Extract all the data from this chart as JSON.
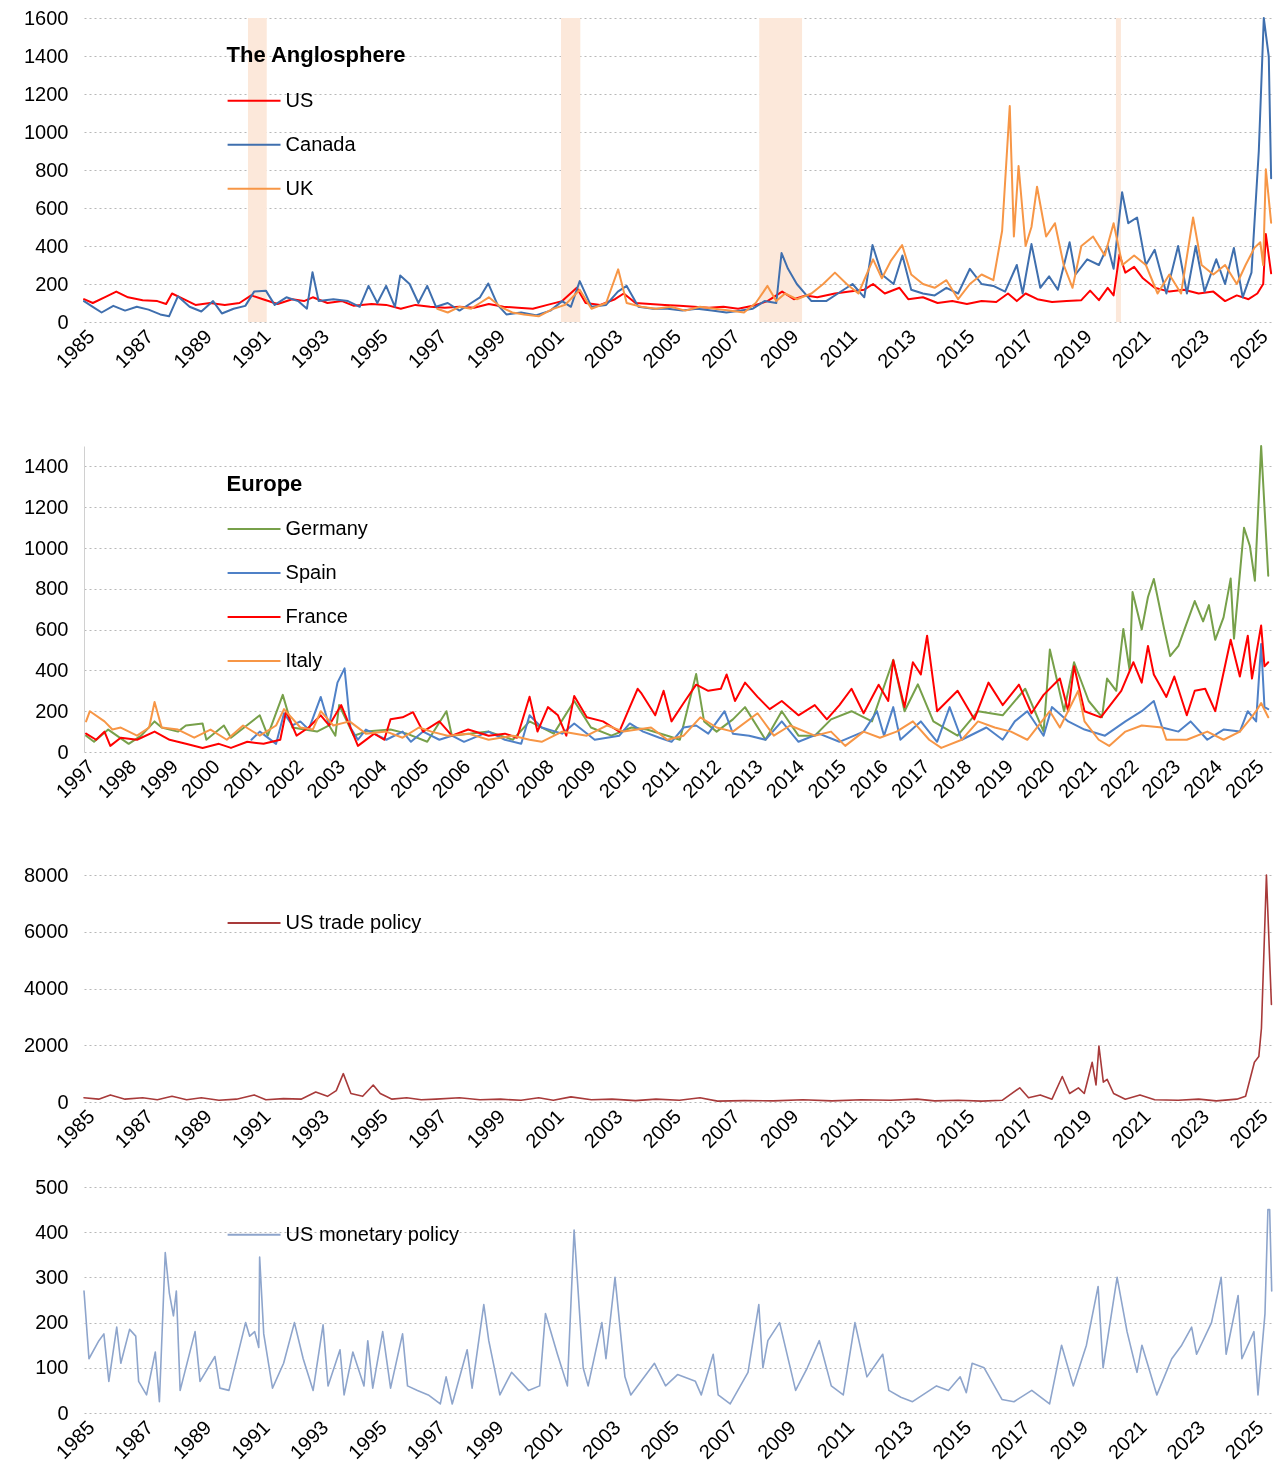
{
  "chart_data": [
    {
      "type": "line",
      "legend": "top left",
      "legend_title": "The Anglosphere",
      "grid": "y",
      "xlim": [
        1985,
        2025.5
      ],
      "xticks": [
        1985,
        1987,
        1989,
        1991,
        1993,
        1995,
        1997,
        1999,
        2001,
        2003,
        2005,
        2007,
        2009,
        2011,
        2013,
        2015,
        2017,
        2019,
        2021,
        2023,
        2025
      ],
      "ylim": [
        0,
        1600
      ],
      "yticks": [
        0,
        200,
        400,
        600,
        800,
        1000,
        1200,
        1400,
        1600
      ],
      "bands": [
        {
          "axis": "x",
          "from": 1990.59,
          "to": 1991.23,
          "color": "#fce8da"
        },
        {
          "axis": "x",
          "from": 2001.26,
          "to": 2001.92,
          "color": "#fce8da"
        },
        {
          "axis": "x",
          "from": 2008.02,
          "to": 2009.48,
          "color": "#fce8da"
        },
        {
          "axis": "x",
          "from": 2020.18,
          "to": 2020.35,
          "color": "#fce8da"
        }
      ],
      "series": [
        {
          "name": "US",
          "color": "#ff0000",
          "x": [
            1985.0,
            1985.3,
            1985.7,
            1986.1,
            1986.5,
            1987.0,
            1987.5,
            1987.8,
            1988.0,
            1988.4,
            1988.8,
            1989.3,
            1989.8,
            1990.3,
            1990.7,
            1991.1,
            1991.6,
            1992.1,
            1992.5,
            1992.8,
            1993.3,
            1993.8,
            1994.2,
            1994.8,
            1995.3,
            1995.8,
            1996.3,
            1996.8,
            1997.3,
            1997.8,
            1998.3,
            1998.8,
            1999.3,
            1999.8,
            2000.3,
            2000.8,
            2001.3,
            2001.8,
            2002.1,
            2002.6,
            2003.1,
            2003.4,
            2003.8,
            2004.3,
            2004.8,
            2005.3,
            2005.8,
            2006.3,
            2006.8,
            2007.3,
            2007.8,
            2008.3,
            2008.8,
            2009.2,
            2009.6,
            2010.0,
            2010.6,
            2011.1,
            2011.6,
            2011.9,
            2012.3,
            2012.8,
            2013.1,
            2013.6,
            2014.1,
            2014.6,
            2015.1,
            2015.6,
            2016.1,
            2016.5,
            2016.8,
            2017.1,
            2017.5,
            2018.0,
            2018.5,
            2019.0,
            2019.3,
            2019.6,
            2019.9,
            2020.1,
            2020.3,
            2020.5,
            2020.8,
            2021.1,
            2021.5,
            2022.0,
            2022.5,
            2023.0,
            2023.5,
            2023.9,
            2024.3,
            2024.7,
            2025.0,
            2025.2,
            2025.29,
            2025.47
          ],
          "values": [
            120,
            100,
            130,
            160,
            130,
            115,
            110,
            95,
            150,
            120,
            90,
            100,
            90,
            100,
            140,
            120,
            95,
            120,
            110,
            130,
            100,
            110,
            85,
            95,
            90,
            70,
            90,
            80,
            75,
            80,
            75,
            95,
            80,
            75,
            70,
            90,
            110,
            180,
            100,
            90,
            120,
            150,
            100,
            95,
            90,
            85,
            80,
            75,
            80,
            70,
            85,
            110,
            160,
            120,
            140,
            130,
            150,
            160,
            170,
            200,
            150,
            180,
            120,
            130,
            100,
            110,
            95,
            110,
            105,
            150,
            110,
            150,
            120,
            105,
            110,
            115,
            165,
            115,
            180,
            140,
            355,
            260,
            290,
            230,
            180,
            160,
            170,
            150,
            160,
            110,
            140,
            120,
            150,
            200,
            463,
            256
          ]
        },
        {
          "name": "Canada",
          "color": "#3f6fae",
          "x": [
            1985.0,
            1985.3,
            1985.6,
            1986.0,
            1986.4,
            1986.8,
            1987.2,
            1987.6,
            1987.9,
            1988.2,
            1988.6,
            1989.0,
            1989.4,
            1989.7,
            1990.1,
            1990.5,
            1990.8,
            1991.2,
            1991.5,
            1991.9,
            1992.3,
            1992.6,
            1992.79,
            1993.0,
            1993.5,
            1994.0,
            1994.4,
            1994.7,
            1995.0,
            1995.3,
            1995.6,
            1995.78,
            1996.1,
            1996.4,
            1996.7,
            1997.0,
            1997.4,
            1997.8,
            1998.2,
            1998.5,
            1998.78,
            1999.1,
            1999.4,
            1999.9,
            2000.4,
            2000.9,
            2001.3,
            2001.6,
            2001.9,
            2002.3,
            2002.8,
            2003.2,
            2003.5,
            2003.9,
            2004.4,
            2004.9,
            2005.4,
            2005.9,
            2006.4,
            2006.9,
            2007.4,
            2007.8,
            2008.2,
            2008.6,
            2008.78,
            2009.0,
            2009.3,
            2009.8,
            2010.3,
            2010.7,
            2011.2,
            2011.6,
            2011.88,
            2012.2,
            2012.6,
            2012.9,
            2013.2,
            2013.6,
            2014.0,
            2014.4,
            2014.8,
            2015.2,
            2015.6,
            2016.0,
            2016.4,
            2016.8,
            2017.0,
            2017.3,
            2017.6,
            2017.9,
            2018.2,
            2018.6,
            2018.8,
            2019.2,
            2019.6,
            2019.9,
            2020.1,
            2020.39,
            2020.6,
            2020.9,
            2021.2,
            2021.5,
            2021.9,
            2022.3,
            2022.6,
            2022.9,
            2023.2,
            2023.6,
            2023.9,
            2024.2,
            2024.5,
            2024.8,
            2025.05,
            2025.22,
            2025.39,
            2025.47
          ],
          "values": [
            110,
            80,
            50,
            85,
            60,
            80,
            65,
            40,
            30,
            135,
            80,
            55,
            110,
            45,
            70,
            85,
            160,
            165,
            90,
            130,
            110,
            70,
            262,
            110,
            120,
            110,
            80,
            190,
            100,
            190,
            80,
            245,
            200,
            100,
            190,
            80,
            100,
            60,
            100,
            130,
            203,
            90,
            40,
            50,
            35,
            60,
            110,
            80,
            215,
            80,
            90,
            160,
            190,
            80,
            70,
            70,
            60,
            70,
            60,
            50,
            60,
            70,
            110,
            100,
            363,
            280,
            200,
            110,
            110,
            150,
            200,
            130,
            405,
            250,
            200,
            350,
            170,
            150,
            140,
            180,
            150,
            280,
            200,
            190,
            160,
            300,
            150,
            410,
            180,
            240,
            170,
            420,
            250,
            330,
            300,
            400,
            280,
            683,
            520,
            550,
            300,
            380,
            150,
            400,
            150,
            400,
            160,
            330,
            200,
            390,
            130,
            260,
            900,
            1600,
            1397,
            757
          ]
        },
        {
          "name": "UK",
          "color": "#f79646",
          "x": [
            1997.04,
            1997.4,
            1997.8,
            1998.2,
            1998.5,
            1998.8,
            1999.2,
            1999.6,
            2000.0,
            2000.5,
            2001.0,
            2001.4,
            2001.9,
            2002.3,
            2002.8,
            2003.21,
            2003.5,
            2004.0,
            2004.5,
            2005.0,
            2005.5,
            2006.0,
            2006.5,
            2007.0,
            2007.5,
            2007.9,
            2008.3,
            2008.6,
            2008.9,
            2009.3,
            2009.8,
            2010.2,
            2010.6,
            2011.0,
            2011.4,
            2011.9,
            2012.2,
            2012.5,
            2012.89,
            2013.2,
            2013.6,
            2014.0,
            2014.4,
            2014.8,
            2015.2,
            2015.6,
            2016.0,
            2016.3,
            2016.56,
            2016.7,
            2016.86,
            2017.1,
            2017.3,
            2017.49,
            2017.8,
            2018.1,
            2018.4,
            2018.7,
            2019.0,
            2019.4,
            2019.8,
            2020.1,
            2020.4,
            2020.8,
            2021.2,
            2021.6,
            2022.0,
            2022.4,
            2022.81,
            2023.1,
            2023.5,
            2023.9,
            2024.3,
            2024.6,
            2024.9,
            2025.1,
            2025.2,
            2025.29,
            2025.47
          ],
          "values": [
            70,
            50,
            80,
            70,
            100,
            130,
            80,
            50,
            40,
            30,
            70,
            90,
            170,
            70,
            100,
            277,
            100,
            80,
            70,
            80,
            60,
            80,
            70,
            60,
            50,
            100,
            190,
            110,
            150,
            120,
            150,
            200,
            260,
            200,
            150,
            330,
            230,
            320,
            405,
            250,
            200,
            180,
            220,
            120,
            200,
            250,
            220,
            480,
            1137,
            450,
            821,
            400,
            500,
            712,
            450,
            520,
            300,
            180,
            400,
            450,
            350,
            520,
            300,
            350,
            300,
            150,
            250,
            150,
            550,
            300,
            250,
            300,
            200,
            300,
            390,
            420,
            300,
            804,
            523
          ]
        }
      ]
    },
    {
      "type": "line",
      "legend": "top left",
      "legend_title": "Europe",
      "grid": "y",
      "xlim": [
        1997,
        2025.45
      ],
      "xticks": [
        1997,
        1998,
        1999,
        2000,
        2001,
        2002,
        2003,
        2004,
        2005,
        2006,
        2007,
        2008,
        2009,
        2010,
        2011,
        2012,
        2013,
        2014,
        2015,
        2016,
        2017,
        2018,
        2019,
        2020,
        2021,
        2022,
        2023,
        2024,
        2025
      ],
      "ylim": [
        0,
        1500
      ],
      "yticks": [
        0,
        200,
        400,
        600,
        800,
        1000,
        1200,
        1400
      ],
      "series": [
        {
          "name": "Germany",
          "color": "#77a04a",
          "x": [
            1997.05,
            1997.24,
            1997.58,
            1998.07,
            1998.37,
            1998.69,
            1998.86,
            1999.25,
            1999.44,
            1999.84,
            1999.93,
            2000.35,
            2000.52,
            2001.21,
            2001.4,
            2001.76,
            2001.99,
            2002.58,
            2002.87,
            2003.02,
            2003.11,
            2003.46,
            2003.75,
            2004.34,
            2004.73,
            2005.22,
            2005.68,
            2005.81,
            2006.69,
            2007.27,
            2007.67,
            2008.25,
            2008.74,
            2009.14,
            2009.63,
            2010.11,
            2010.48,
            2010.97,
            2011.27,
            2011.66,
            2011.85,
            2012.15,
            2012.54,
            2012.83,
            2013.32,
            2013.71,
            2014.11,
            2014.5,
            2014.89,
            2015.38,
            2015.87,
            2016.38,
            2016.65,
            2016.97,
            2017.34,
            2017.92,
            2018.41,
            2019.0,
            2019.54,
            2019.98,
            2020.13,
            2020.27,
            2020.47,
            2020.71,
            2021.06,
            2021.38,
            2021.5,
            2021.72,
            2021.89,
            2022.04,
            2022.11,
            2022.33,
            2022.48,
            2022.62,
            2022.87,
            2023.01,
            2023.21,
            2023.6,
            2023.8,
            2023.94,
            2024.09,
            2024.29,
            2024.46,
            2024.54,
            2024.78,
            2024.92,
            2025.04,
            2025.19,
            2025.36
          ],
          "values": [
            80,
            50,
            110,
            40,
            80,
            150,
            120,
            100,
            130,
            140,
            60,
            130,
            70,
            180,
            80,
            280,
            120,
            100,
            130,
            80,
            230,
            80,
            100,
            110,
            90,
            50,
            200,
            80,
            100,
            60,
            150,
            90,
            250,
            120,
            80,
            120,
            110,
            80,
            60,
            382,
            150,
            100,
            160,
            220,
            60,
            200,
            80,
            80,
            160,
            200,
            150,
            452,
            200,
            332,
            150,
            80,
            200,
            180,
            310,
            100,
            502,
            380,
            200,
            440,
            250,
            171,
            360,
            300,
            603,
            400,
            784,
            600,
            760,
            848,
            600,
            470,
            520,
            740,
            640,
            720,
            550,
            660,
            850,
            556,
            1099,
            1010,
            840,
            1500,
            864
          ]
        },
        {
          "name": "Spain",
          "color": "#4f81c7",
          "x": [
            2001.01,
            2001.21,
            2001.6,
            2001.79,
            2001.99,
            2002.18,
            2002.38,
            2002.67,
            2002.87,
            2003.07,
            2003.24,
            2003.38,
            2003.56,
            2003.75,
            2004.24,
            2004.63,
            2004.83,
            2005.12,
            2005.51,
            2005.81,
            2006.1,
            2006.69,
            2007.08,
            2007.47,
            2007.67,
            2007.96,
            2008.45,
            2008.74,
            2009.23,
            2009.82,
            2010.07,
            2010.39,
            2010.78,
            2011.07,
            2011.36,
            2011.66,
            2011.95,
            2012.34,
            2012.54,
            2012.93,
            2013.32,
            2013.71,
            2014.11,
            2014.6,
            2015.09,
            2015.67,
            2015.99,
            2016.16,
            2016.38,
            2016.55,
            2017.04,
            2017.43,
            2017.73,
            2018.02,
            2018.61,
            2019.0,
            2019.29,
            2019.59,
            2019.98,
            2020.18,
            2020.57,
            2020.96,
            2021.45,
            2021.94,
            2022.33,
            2022.62,
            2022.82,
            2023.21,
            2023.5,
            2023.9,
            2024.29,
            2024.68,
            2024.87,
            2025.07,
            2025.19,
            2025.27,
            2025.36
          ],
          "values": [
            60,
            100,
            40,
            190,
            130,
            150,
            110,
            270,
            130,
            340,
            410,
            120,
            60,
            110,
            60,
            100,
            50,
            100,
            60,
            80,
            50,
            100,
            60,
            40,
            180,
            120,
            90,
            140,
            60,
            80,
            140,
            100,
            70,
            50,
            120,
            130,
            90,
            200,
            90,
            80,
            60,
            150,
            50,
            90,
            50,
            100,
            200,
            80,
            220,
            60,
            150,
            50,
            220,
            60,
            120,
            60,
            150,
            200,
            80,
            220,
            150,
            110,
            80,
            150,
            200,
            250,
            120,
            100,
            150,
            60,
            110,
            100,
            200,
            150,
            530,
            220,
            210
          ]
        },
        {
          "name": "France",
          "color": "#ff0000",
          "x": [
            1997.05,
            1997.29,
            1997.49,
            1997.63,
            1997.88,
            1998.27,
            1998.69,
            1999.05,
            1999.44,
            1999.84,
            2000.23,
            2000.52,
            2000.91,
            2001.3,
            2001.7,
            2001.84,
            2002.09,
            2002.38,
            2002.67,
            2002.87,
            2003.16,
            2003.56,
            2003.95,
            2004.19,
            2004.34,
            2004.63,
            2004.88,
            2005.12,
            2005.51,
            2005.81,
            2006.2,
            2006.69,
            2007.08,
            2007.37,
            2007.67,
            2007.86,
            2008.11,
            2008.35,
            2008.55,
            2008.74,
            2009.04,
            2009.43,
            2009.82,
            2010.07,
            2010.26,
            2010.34,
            2010.68,
            2010.88,
            2011.07,
            2011.36,
            2011.66,
            2011.95,
            2012.25,
            2012.39,
            2012.59,
            2012.83,
            2013.13,
            2013.42,
            2013.71,
            2014.11,
            2014.5,
            2014.79,
            2015.09,
            2015.38,
            2015.67,
            2016.03,
            2016.26,
            2016.38,
            2016.65,
            2016.85,
            2017.04,
            2017.19,
            2017.43,
            2017.92,
            2018.32,
            2018.66,
            2019.0,
            2019.39,
            2019.69,
            2019.98,
            2020.37,
            2020.57,
            2020.71,
            2020.96,
            2021.35,
            2021.84,
            2022.13,
            2022.33,
            2022.48,
            2022.62,
            2022.92,
            2023.11,
            2023.41,
            2023.6,
            2023.85,
            2024.09,
            2024.46,
            2024.68,
            2024.87,
            2024.97,
            2025.19,
            2025.27,
            2025.36
          ],
          "values": [
            90,
            60,
            100,
            30,
            70,
            60,
            100,
            60,
            40,
            20,
            40,
            20,
            50,
            40,
            60,
            200,
            80,
            120,
            180,
            130,
            230,
            30,
            90,
            60,
            160,
            170,
            195,
            100,
            150,
            80,
            110,
            80,
            90,
            70,
            271,
            100,
            220,
            180,
            80,
            275,
            170,
            150,
            100,
            220,
            310,
            290,
            180,
            300,
            150,
            240,
            330,
            300,
            310,
            380,
            250,
            340,
            270,
            210,
            250,
            180,
            230,
            160,
            230,
            310,
            190,
            330,
            250,
            450,
            220,
            440,
            380,
            570,
            200,
            300,
            160,
            340,
            230,
            330,
            190,
            280,
            360,
            200,
            420,
            200,
            170,
            300,
            440,
            340,
            520,
            380,
            270,
            370,
            180,
            300,
            310,
            200,
            550,
            370,
            570,
            360,
            620,
            420,
            440
          ]
        },
        {
          "name": "Italy",
          "color": "#f79646",
          "x": [
            1997.05,
            1997.14,
            1997.49,
            1997.68,
            1997.88,
            1998.27,
            1998.56,
            1998.69,
            1998.86,
            1999.25,
            1999.64,
            2000.03,
            2000.42,
            2000.81,
            2001.21,
            2001.6,
            2001.79,
            2002.18,
            2002.48,
            2002.67,
            2002.97,
            2003.36,
            2003.75,
            2004.24,
            2004.63,
            2005.02,
            2005.32,
            2005.71,
            2006.2,
            2006.69,
            2007.27,
            2007.67,
            2007.96,
            2008.45,
            2009.04,
            2009.53,
            2009.92,
            2010.58,
            2010.97,
            2011.36,
            2011.76,
            2012.15,
            2012.54,
            2013.13,
            2013.52,
            2013.91,
            2014.5,
            2014.89,
            2015.23,
            2015.67,
            2016.06,
            2016.46,
            2016.85,
            2017.24,
            2017.53,
            2018.02,
            2018.41,
            2018.81,
            2019.2,
            2019.59,
            2020.13,
            2020.37,
            2020.81,
            2020.96,
            2021.3,
            2021.55,
            2021.94,
            2022.33,
            2022.82,
            2022.92,
            2023.41,
            2023.9,
            2024.29,
            2024.68,
            2024.92,
            2025.07,
            2025.19,
            2025.36
          ],
          "values": [
            150,
            200,
            150,
            110,
            120,
            80,
            120,
            245,
            120,
            110,
            70,
            110,
            60,
            130,
            80,
            130,
            210,
            120,
            110,
            200,
            130,
            150,
            90,
            100,
            70,
            120,
            100,
            80,
            90,
            60,
            80,
            60,
            50,
            100,
            80,
            130,
            100,
            120,
            60,
            80,
            170,
            120,
            100,
            190,
            80,
            130,
            80,
            100,
            30,
            100,
            70,
            100,
            150,
            60,
            20,
            60,
            150,
            120,
            100,
            60,
            200,
            120,
            300,
            150,
            60,
            30,
            100,
            130,
            120,
            60,
            60,
            100,
            60,
            100,
            160,
            200,
            240,
            170
          ]
        }
      ]
    },
    {
      "type": "line",
      "legend": "top left",
      "grid": "y",
      "xlim": [
        1985,
        2025.5
      ],
      "xticks": [
        1985,
        1987,
        1989,
        1991,
        1993,
        1995,
        1997,
        1999,
        2001,
        2003,
        2005,
        2007,
        2009,
        2011,
        2013,
        2015,
        2017,
        2019,
        2021,
        2023,
        2025
      ],
      "ylim": [
        0,
        8000
      ],
      "yticks": [
        0,
        2000,
        4000,
        6000,
        8000
      ],
      "series": [
        {
          "name": "US trade policy",
          "color": "#a83a3a",
          "x": [
            1985.0,
            1985.5,
            1985.9,
            1986.4,
            1987.0,
            1987.5,
            1988.0,
            1988.5,
            1989.0,
            1989.6,
            1990.2,
            1990.8,
            1991.2,
            1991.8,
            1992.4,
            1992.9,
            1993.3,
            1993.6,
            1993.84,
            1994.1,
            1994.5,
            1994.86,
            1995.1,
            1995.5,
            1996.0,
            1996.5,
            1997.0,
            1997.8,
            1998.5,
            1999.2,
            1999.9,
            2000.5,
            2001.0,
            2001.6,
            2002.3,
            2003.0,
            2003.8,
            2004.5,
            2005.3,
            2006.0,
            2006.6,
            2007.5,
            2008.5,
            2009.5,
            2010.5,
            2011.5,
            2012.5,
            2013.4,
            2014.0,
            2014.8,
            2015.6,
            2016.3,
            2016.9,
            2017.2,
            2017.6,
            2018.0,
            2018.35,
            2018.6,
            2018.9,
            2019.1,
            2019.37,
            2019.5,
            2019.6,
            2019.75,
            2019.88,
            2020.1,
            2020.5,
            2021.0,
            2021.5,
            2022.3,
            2023.0,
            2023.6,
            2024.3,
            2024.6,
            2024.9,
            2025.05,
            2025.14,
            2025.31,
            2025.48
          ],
          "values": [
            150,
            100,
            250,
            100,
            150,
            80,
            200,
            80,
            150,
            60,
            100,
            250,
            80,
            120,
            100,
            350,
            200,
            400,
            1000,
            300,
            200,
            600,
            300,
            100,
            150,
            80,
            100,
            150,
            80,
            100,
            60,
            150,
            60,
            180,
            80,
            100,
            50,
            100,
            60,
            150,
            30,
            50,
            40,
            80,
            40,
            80,
            60,
            100,
            40,
            60,
            30,
            60,
            500,
            150,
            250,
            100,
            900,
            300,
            500,
            300,
            1400,
            600,
            1970,
            700,
            800,
            300,
            100,
            250,
            80,
            60,
            100,
            40,
            100,
            200,
            1400,
            1600,
            2600,
            8000,
            3440
          ]
        }
      ]
    },
    {
      "type": "line",
      "legend": "top left",
      "grid": "y",
      "xlim": [
        1985,
        2025.65
      ],
      "xticks": [
        1985,
        1987,
        1989,
        1991,
        1993,
        1995,
        1997,
        1999,
        2001,
        2003,
        2005,
        2007,
        2009,
        2011,
        2013,
        2015,
        2017,
        2019,
        2021,
        2023,
        2025
      ],
      "ylim": [
        0,
        500
      ],
      "yticks": [
        0,
        100,
        200,
        300,
        400,
        500
      ],
      "series": [
        {
          "name": "US monetary policy",
          "color": "#8ea5cc",
          "x": [
            1985.0,
            1985.17,
            1985.51,
            1985.68,
            1985.85,
            1986.12,
            1986.26,
            1986.56,
            1986.77,
            1986.87,
            1987.14,
            1987.44,
            1987.58,
            1987.78,
            1987.92,
            1988.06,
            1988.16,
            1988.29,
            1988.8,
            1988.97,
            1989.48,
            1989.65,
            1989.96,
            1990.53,
            1990.67,
            1990.84,
            1990.98,
            1991.01,
            1991.15,
            1991.45,
            1991.83,
            1992.2,
            1992.5,
            1992.84,
            1993.18,
            1993.35,
            1993.76,
            1993.9,
            1994.2,
            1994.58,
            1994.71,
            1994.88,
            1995.22,
            1995.49,
            1995.9,
            1996.07,
            1996.41,
            1996.78,
            1997.19,
            1997.39,
            1997.6,
            1998.11,
            1998.28,
            1998.68,
            1998.85,
            1999.23,
            1999.63,
            2000.21,
            2000.59,
            2000.79,
            2001.2,
            2001.54,
            2001.77,
            2002.08,
            2002.25,
            2002.72,
            2002.86,
            2003.17,
            2003.51,
            2003.71,
            2004.52,
            2004.9,
            2005.31,
            2005.92,
            2006.12,
            2006.53,
            2006.7,
            2007.11,
            2007.72,
            2008.09,
            2008.23,
            2008.4,
            2008.8,
            2009.35,
            2009.75,
            2010.16,
            2010.57,
            2010.98,
            2011.38,
            2011.79,
            2012.33,
            2012.54,
            2012.95,
            2013.35,
            2014.17,
            2014.58,
            2014.98,
            2015.19,
            2015.39,
            2015.8,
            2016.41,
            2016.82,
            2017.43,
            2018.04,
            2018.45,
            2018.85,
            2019.3,
            2019.7,
            2019.87,
            2020.35,
            2020.69,
            2021.03,
            2021.2,
            2021.71,
            2022.22,
            2022.56,
            2022.9,
            2023.07,
            2023.58,
            2023.91,
            2024.08,
            2024.49,
            2024.62,
            2025.03,
            2025.17,
            2025.41,
            2025.51,
            2025.57,
            2025.64
          ],
          "values": [
            270,
            120,
            160,
            175,
            70,
            190,
            110,
            185,
            170,
            70,
            40,
            135,
            25,
            355,
            265,
            215,
            270,
            50,
            180,
            70,
            125,
            55,
            50,
            200,
            170,
            180,
            145,
            345,
            175,
            55,
            110,
            200,
            120,
            50,
            195,
            60,
            140,
            40,
            135,
            60,
            160,
            55,
            180,
            55,
            175,
            60,
            50,
            40,
            20,
            80,
            20,
            140,
            55,
            240,
            160,
            40,
            90,
            50,
            60,
            220,
            130,
            60,
            405,
            100,
            60,
            200,
            120,
            300,
            80,
            40,
            110,
            60,
            85,
            70,
            40,
            130,
            40,
            20,
            90,
            240,
            100,
            160,
            200,
            50,
            100,
            160,
            60,
            40,
            200,
            80,
            130,
            50,
            35,
            25,
            60,
            50,
            80,
            45,
            110,
            100,
            30,
            25,
            50,
            20,
            150,
            60,
            150,
            280,
            100,
            300,
            180,
            90,
            150,
            40,
            120,
            150,
            190,
            130,
            200,
            300,
            130,
            260,
            120,
            180,
            40,
            220,
            450,
            450,
            270
          ]
        }
      ]
    }
  ]
}
